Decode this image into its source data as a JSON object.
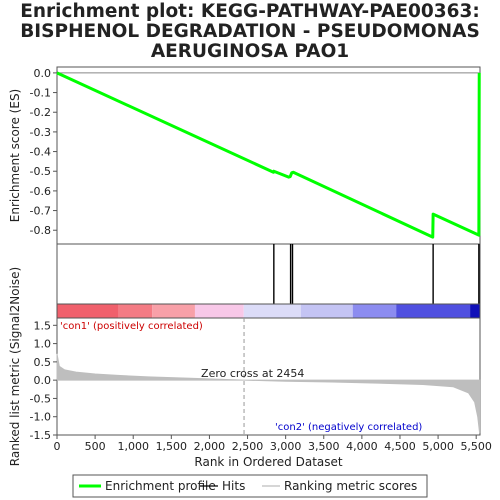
{
  "title_lines": [
    "Enrichment plot: KEGG-PATHWAY-PAE00363:",
    "BISPHENOL DEGRADATION - PSEUDOMONAS",
    "AERUGINOSA PAO1"
  ],
  "chart_data": {
    "type": "line",
    "es_panel": {
      "ylabel": "Enrichment score (ES)",
      "ylim": [
        -0.87,
        0.03
      ],
      "yticks": [
        "0.0",
        "-0.1",
        "-0.2",
        "-0.3",
        "-0.4",
        "-0.5",
        "-0.6",
        "-0.7",
        "-0.8"
      ],
      "ytick_values": [
        0.0,
        -0.1,
        -0.2,
        -0.3,
        -0.4,
        -0.5,
        -0.6,
        -0.7,
        -0.8
      ],
      "series": [
        {
          "name": "Enrichment profile",
          "color": "#00ff00",
          "x": [
            0,
            2840,
            2845,
            3040,
            3060,
            3080,
            3100,
            4930,
            4935,
            5535,
            5540
          ],
          "y": [
            0.0,
            -0.505,
            -0.5,
            -0.53,
            -0.527,
            -0.508,
            -0.505,
            -0.835,
            -0.718,
            -0.825,
            0.0
          ]
        }
      ]
    },
    "hits": [
      2845,
      3065,
      3090,
      4935,
      5535
    ],
    "color_bar": [
      {
        "x0": 0,
        "x1": 810,
        "color": "#f0606c"
      },
      {
        "x0": 810,
        "x1": 1250,
        "color": "#f47b84"
      },
      {
        "x0": 1250,
        "x1": 1810,
        "color": "#f8a0a8"
      },
      {
        "x0": 1810,
        "x1": 2450,
        "color": "#f8c8e8"
      },
      {
        "x0": 2450,
        "x1": 3200,
        "color": "#dcdcf8"
      },
      {
        "x0": 3200,
        "x1": 3880,
        "color": "#c4c4f4"
      },
      {
        "x0": 3880,
        "x1": 4450,
        "color": "#8c8cf0"
      },
      {
        "x0": 4450,
        "x1": 5420,
        "color": "#5050e0"
      },
      {
        "x0": 5420,
        "x1": 5545,
        "color": "#1010b8"
      }
    ],
    "metric_panel": {
      "ylabel": "Ranked list metric (Signal2Noise)",
      "ylim": [
        -1.5,
        1.7
      ],
      "yticks": [
        "1.5",
        "1.0",
        "0.5",
        "0.0",
        "-0.5",
        "-1.0",
        "-1.5"
      ],
      "ytick_values": [
        1.5,
        1.0,
        0.5,
        0.0,
        -0.5,
        -1.0,
        -1.5
      ],
      "x": [
        0,
        30,
        100,
        250,
        500,
        800,
        1200,
        1800,
        2454,
        3000,
        3600,
        4200,
        4800,
        5200,
        5400,
        5480,
        5520,
        5545
      ],
      "y": [
        0.72,
        0.38,
        0.28,
        0.22,
        0.17,
        0.13,
        0.09,
        0.05,
        0.0,
        -0.03,
        -0.05,
        -0.08,
        -0.12,
        -0.18,
        -0.35,
        -0.6,
        -1.0,
        -1.45
      ],
      "color": "#bebebe",
      "zero_cross_label": "Zero cross at 2454",
      "zero_cross_x": 2454,
      "pos_label": "'con1' (positively correlated)",
      "neg_label": "'con2' (negatively correlated)",
      "pos_color": "#cc0000",
      "neg_color": "#0000cc"
    },
    "xlabel": "Rank in Ordered Dataset",
    "xlim": [
      0,
      5550
    ],
    "xticks": [
      "0",
      "500",
      "1,000",
      "1,500",
      "2,000",
      "2,500",
      "3,000",
      "3,500",
      "4,000",
      "4,500",
      "5,000",
      "5,500"
    ],
    "xtick_values": [
      0,
      500,
      1000,
      1500,
      2000,
      2500,
      3000,
      3500,
      4000,
      4500,
      5000,
      5500
    ],
    "legend": {
      "position": "bottom",
      "items": [
        {
          "label": "Enrichment profile",
          "color": "#00ff00"
        },
        {
          "label": "Hits",
          "color": "#000000"
        },
        {
          "label": "Ranking metric scores",
          "color": "#bebebe"
        }
      ]
    }
  }
}
